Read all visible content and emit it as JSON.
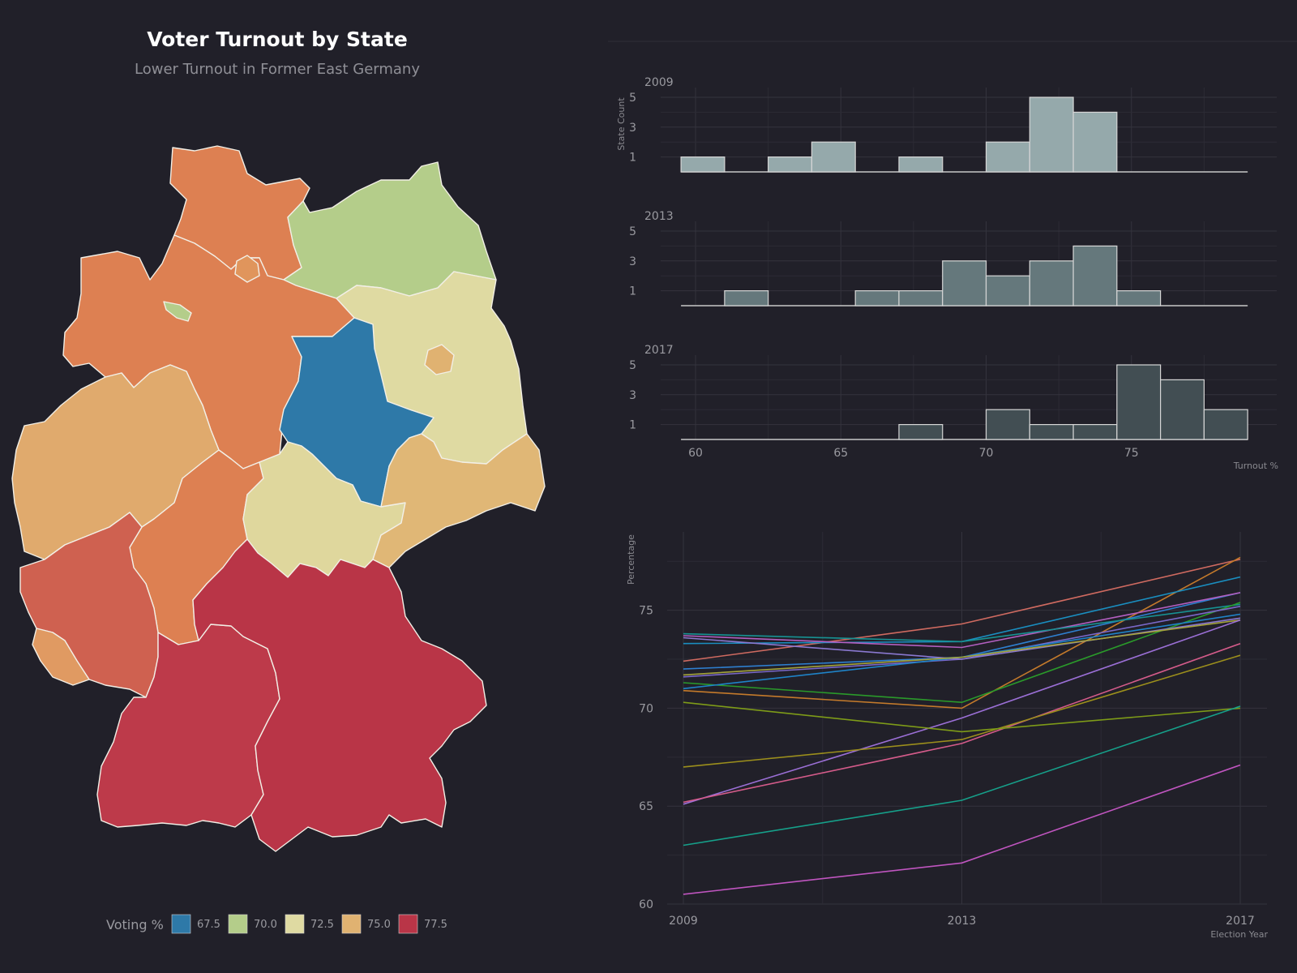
{
  "map": {
    "title": "Voter Turnout by State",
    "subtitle": "Lower Turnout in Former East Germany",
    "legend_title": "Voting %",
    "legend": [
      {
        "label": "67.5",
        "color": "#2e79a8"
      },
      {
        "label": "70.0",
        "color": "#b4cd8a"
      },
      {
        "label": "72.5",
        "color": "#dfdaa2"
      },
      {
        "label": "75.0",
        "color": "#e0b271"
      },
      {
        "label": "77.5",
        "color": "#b93547"
      }
    ],
    "regions": [
      {
        "name": "Schleswig-Holstein",
        "color": "#dd8052"
      },
      {
        "name": "Mecklenburg-Vorpommern",
        "color": "#b4cd8a"
      },
      {
        "name": "Hamburg",
        "color": "#e0955c"
      },
      {
        "name": "Bremen",
        "color": "#b4cd8a"
      },
      {
        "name": "Niedersachsen",
        "color": "#dd8052"
      },
      {
        "name": "Brandenburg",
        "color": "#dfdaa2"
      },
      {
        "name": "Berlin",
        "color": "#e0b271"
      },
      {
        "name": "Sachsen-Anhalt",
        "color": "#2e79a8"
      },
      {
        "name": "Nordrhein-Westfalen",
        "color": "#e0aa6d"
      },
      {
        "name": "Hessen",
        "color": "#dd8052"
      },
      {
        "name": "Thüringen",
        "color": "#dfd79d"
      },
      {
        "name": "Sachsen",
        "color": "#e0b776"
      },
      {
        "name": "Rheinland-Pfalz",
        "color": "#cf6150"
      },
      {
        "name": "Saarland",
        "color": "#e09a62"
      },
      {
        "name": "Baden-Württemberg",
        "color": "#bd3a4a"
      },
      {
        "name": "Bayern",
        "color": "#b93547"
      }
    ]
  },
  "chart_data": [
    {
      "type": "bar",
      "title": "",
      "panels": [
        {
          "label": "2009",
          "bin_starts": [
            59.5,
            62.5,
            64.0,
            67.0,
            70.0,
            71.5,
            73.0
          ],
          "counts": [
            1,
            1,
            2,
            1,
            2,
            5,
            4
          ],
          "fill": "#95a9ab"
        },
        {
          "label": "2013",
          "bin_starts": [
            61.0,
            65.5,
            67.0,
            68.5,
            70.0,
            71.5,
            73.0,
            74.5
          ],
          "counts": [
            1,
            1,
            1,
            3,
            2,
            3,
            4,
            1
          ],
          "fill": "#65787c"
        },
        {
          "label": "2017",
          "bin_starts": [
            67.0,
            70.0,
            71.5,
            73.0,
            74.5,
            76.0,
            77.5
          ],
          "counts": [
            1,
            2,
            1,
            1,
            5,
            4,
            2
          ],
          "fill": "#424e53"
        }
      ],
      "bin_width": 1.5,
      "x_range": [
        59.5,
        79.0
      ],
      "xlim": [
        58.8,
        80.0
      ],
      "ylim": [
        0,
        5
      ],
      "yticks": [
        1,
        3,
        5
      ],
      "xticks": [
        60,
        65,
        70,
        75
      ],
      "xlabel": "Turnout %",
      "ylabel": "State Count"
    },
    {
      "type": "line",
      "title": "",
      "x": [
        2009,
        2013,
        2017
      ],
      "xlabel": "Election Year",
      "ylabel": "Percentage",
      "xlim": [
        2009,
        2017.4
      ],
      "ylim": [
        60,
        79
      ],
      "yticks": [
        60,
        65,
        70,
        75
      ],
      "xticks": [
        2009,
        2013,
        2017
      ],
      "series": [
        {
          "values": [
            72.4,
            74.3,
            77.6
          ],
          "color": "#cf6a60"
        },
        {
          "values": [
            70.9,
            70.0,
            77.7
          ],
          "color": "#c47a2b"
        },
        {
          "values": [
            73.3,
            73.4,
            76.7
          ],
          "color": "#1a8ec0"
        },
        {
          "values": [
            72.0,
            72.6,
            75.9
          ],
          "color": "#2e7fd0"
        },
        {
          "values": [
            73.7,
            73.1,
            75.9
          ],
          "color": "#b35fc0"
        },
        {
          "values": [
            73.8,
            73.4,
            75.3
          ],
          "color": "#179293"
        },
        {
          "values": [
            71.3,
            70.3,
            75.4
          ],
          "color": "#2a9a2a"
        },
        {
          "values": [
            71.6,
            72.5,
            75.2
          ],
          "color": "#7a68c8"
        },
        {
          "values": [
            71.0,
            72.6,
            74.8
          ],
          "color": "#1f83c8"
        },
        {
          "values": [
            73.6,
            72.5,
            74.6
          ],
          "color": "#8a78d0"
        },
        {
          "values": [
            71.7,
            72.6,
            74.5
          ],
          "color": "#a4a33a"
        },
        {
          "values": [
            65.1,
            69.5,
            74.5
          ],
          "color": "#9b6fd6"
        },
        {
          "values": [
            65.2,
            68.2,
            73.3
          ],
          "color": "#d45b8a"
        },
        {
          "values": [
            67.0,
            68.4,
            72.7
          ],
          "color": "#9c8f1c"
        },
        {
          "values": [
            70.3,
            68.8,
            70.0
          ],
          "color": "#7e9b18"
        },
        {
          "values": [
            63.0,
            65.3,
            70.1
          ],
          "color": "#16a08a"
        },
        {
          "values": [
            60.5,
            62.1,
            67.1
          ],
          "color": "#c055c0"
        }
      ]
    }
  ]
}
